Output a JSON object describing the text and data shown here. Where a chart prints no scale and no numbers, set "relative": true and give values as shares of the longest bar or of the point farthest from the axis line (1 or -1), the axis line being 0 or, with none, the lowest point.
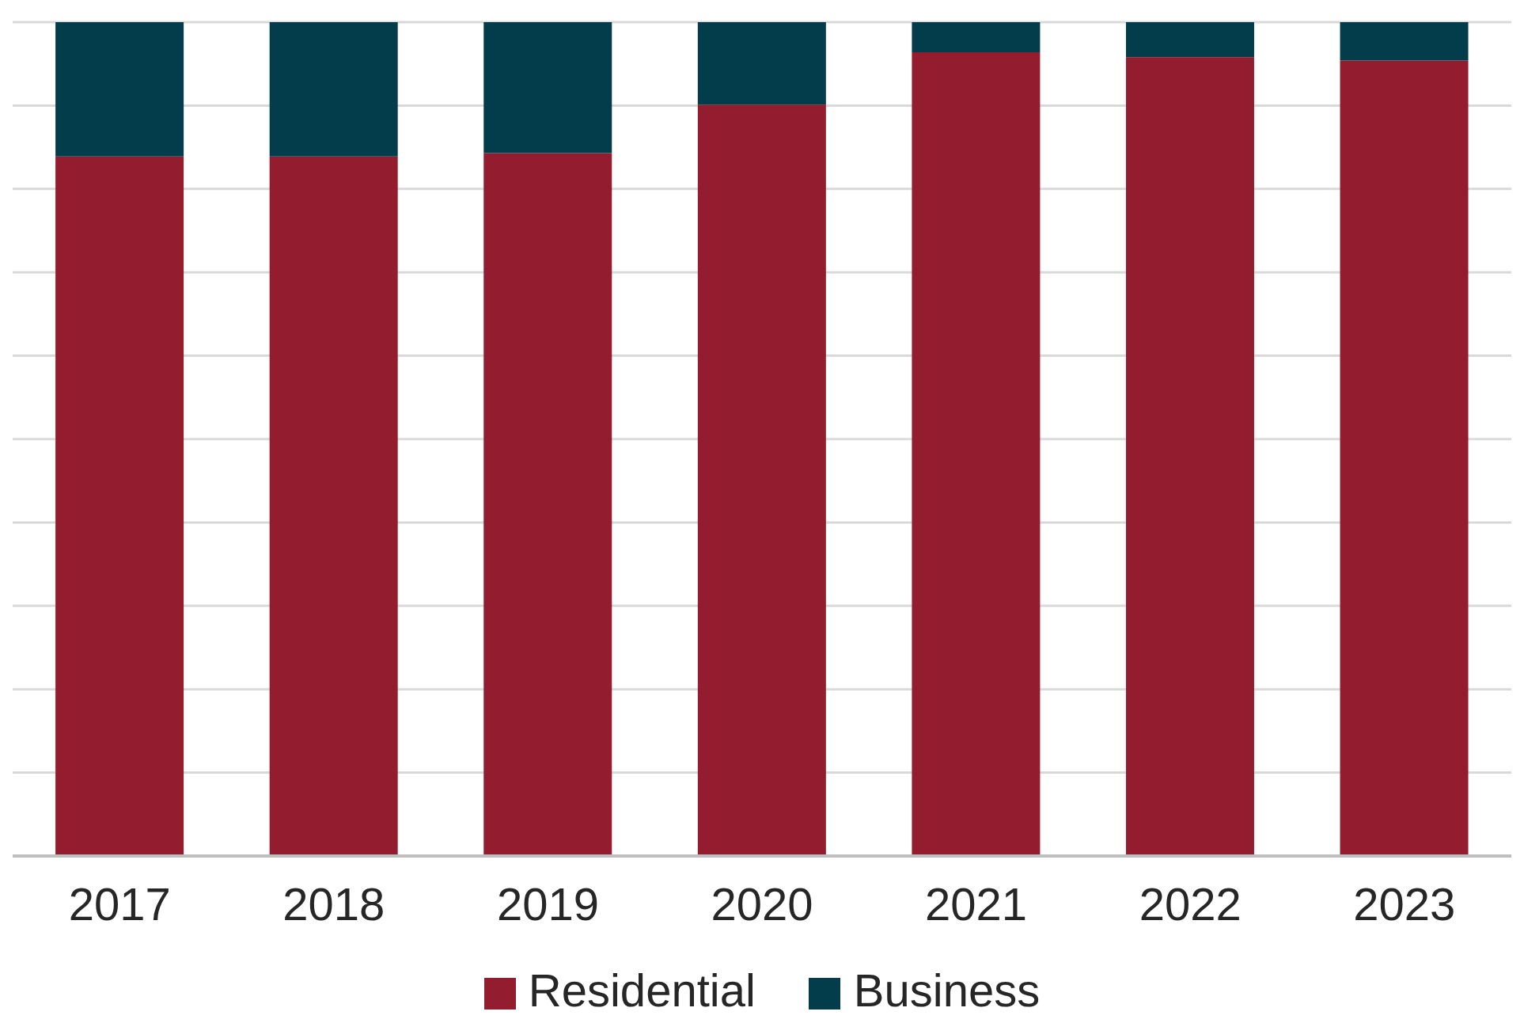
{
  "chart_data": {
    "type": "bar",
    "stacked": true,
    "relative": true,
    "grid": "y",
    "legend": "bottom",
    "categories": [
      "2017",
      "2018",
      "2019",
      "2020",
      "2021",
      "2022",
      "2023"
    ],
    "series": [
      {
        "name": "Residential",
        "color": "#941c2f",
        "values": [
          0.839,
          0.839,
          0.843,
          0.901,
          0.964,
          0.958,
          0.954
        ]
      },
      {
        "name": "Business",
        "color": "#033c4a",
        "values": [
          0.161,
          0.161,
          0.157,
          0.099,
          0.036,
          0.042,
          0.046
        ]
      }
    ]
  }
}
